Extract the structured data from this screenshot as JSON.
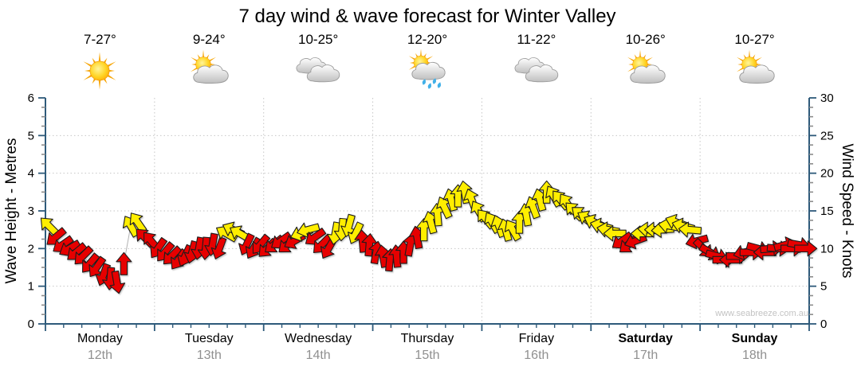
{
  "title": "7 day wind & wave forecast for Winter Valley",
  "watermark": "www.seabreeze.com.au",
  "days": [
    {
      "name": "Monday",
      "date": "12th",
      "temp": "7-27°",
      "icon": "sunny",
      "bold": false
    },
    {
      "name": "Tuesday",
      "date": "13th",
      "temp": "9-24°",
      "icon": "partly-cloudy",
      "bold": false
    },
    {
      "name": "Wednesday",
      "date": "14th",
      "temp": "10-25°",
      "icon": "cloudy",
      "bold": false
    },
    {
      "name": "Thursday",
      "date": "15th",
      "temp": "12-20°",
      "icon": "showers",
      "bold": false
    },
    {
      "name": "Friday",
      "date": "16th",
      "temp": "11-22°",
      "icon": "cloudy",
      "bold": false
    },
    {
      "name": "Saturday",
      "date": "17th",
      "temp": "10-26°",
      "icon": "partly-cloudy",
      "bold": true
    },
    {
      "name": "Sunday",
      "date": "18th",
      "temp": "10-27°",
      "icon": "partly-cloudy",
      "bold": true
    }
  ],
  "colors": {
    "arrow_red": "#e60000",
    "arrow_yellow": "#ffee00",
    "arrow_outline": "#1c1c1c",
    "axis": "#2e5a7a",
    "grid": "#c6c6c6",
    "minor_tick": "#8c8c8c",
    "trace_line": "#b2b2b2",
    "date_text": "#909090",
    "watermark_text": "#c3c3c3"
  },
  "chart_data": {
    "type": "wind-arrows",
    "title": "7 day wind & wave forecast for Winter Valley",
    "left_axis": {
      "label": "Wave Height - Metres",
      "min": 0,
      "max": 6,
      "major_step": 1,
      "minor_step": 0.25
    },
    "right_axis": {
      "label": "Wind Speed - Knots",
      "min": 0,
      "max": 30,
      "major_step": 5,
      "minor_step": 1.25
    },
    "x_axis": {
      "categories": [
        "Monday 12th",
        "Tuesday 13th",
        "Wednesday 14th",
        "Thursday 15th",
        "Friday 16th",
        "Saturday 17th",
        "Sunday 18th"
      ],
      "minor_ticks_per_day": 6,
      "grid_at_day_boundaries": true
    },
    "legend": "none",
    "arrow_color_rule": {
      "yellow_min_knots": 12,
      "red_below_knots": 12
    },
    "dir_convention": "degrees clockwise on screen, 0 = arrow points up",
    "arrows_per_day": 16,
    "days": [
      {
        "day": "Monday",
        "knots": [
          13,
          11.5,
          10.5,
          10,
          9.5,
          9,
          8,
          7.5,
          6.5,
          6,
          5.5,
          8,
          13,
          13.5,
          11.5,
          11
        ],
        "dir_deg": [
          315,
          230,
          235,
          240,
          230,
          225,
          220,
          215,
          200,
          185,
          170,
          0,
          330,
          325,
          315,
          320
        ]
      },
      {
        "day": "Tuesday",
        "knots": [
          10,
          9.5,
          9,
          8.5,
          9,
          9.5,
          10,
          10,
          10.5,
          10,
          12,
          12.5,
          12,
          10.5,
          10,
          10.5
        ],
        "dir_deg": [
          215,
          220,
          225,
          215,
          205,
          195,
          190,
          185,
          190,
          200,
          300,
          295,
          300,
          205,
          210,
          220
        ]
      },
      {
        "day": "Wednesday",
        "knots": [
          10,
          10.5,
          11,
          10.5,
          11,
          12,
          12.5,
          11.5,
          10.5,
          10,
          12,
          12.5,
          13,
          12,
          11,
          10.5
        ],
        "dir_deg": [
          225,
          230,
          235,
          230,
          240,
          250,
          255,
          235,
          225,
          210,
          190,
          185,
          195,
          205,
          355,
          5
        ]
      },
      {
        "day": "Thursday",
        "knots": [
          9.5,
          9,
          8.5,
          9,
          9.5,
          10.5,
          11.5,
          12.5,
          13.5,
          14.5,
          15.5,
          16.5,
          17,
          17.5,
          16.5,
          15
        ],
        "dir_deg": [
          10,
          350,
          5,
          355,
          0,
          10,
          350,
          0,
          345,
          355,
          335,
          345,
          0,
          350,
          340,
          330
        ]
      },
      {
        "day": "Friday",
        "knots": [
          14,
          13.5,
          13,
          12.5,
          12.5,
          13.5,
          14.5,
          15.5,
          16.5,
          17.5,
          17,
          16.5,
          16,
          15,
          14.5,
          14
        ],
        "dir_deg": [
          320,
          330,
          340,
          345,
          330,
          0,
          350,
          340,
          345,
          0,
          330,
          320,
          325,
          315,
          310,
          300
        ]
      },
      {
        "day": "Saturday",
        "knots": [
          13.5,
          13,
          12.5,
          12,
          11,
          10.5,
          11,
          12,
          12.5,
          12.5,
          12.5,
          13,
          13.5,
          13,
          12.5,
          11
        ],
        "dir_deg": [
          295,
          285,
          280,
          270,
          235,
          230,
          250,
          270,
          275,
          270,
          265,
          280,
          290,
          285,
          275,
          255
        ]
      },
      {
        "day": "Sunday",
        "knots": [
          10,
          9.5,
          9,
          8.5,
          8.5,
          9,
          9.5,
          9.5,
          10,
          9.5,
          10,
          10,
          10.5,
          10,
          10.5,
          10
        ],
        "dir_deg": [
          135,
          120,
          105,
          90,
          270,
          90,
          255,
          90,
          105,
          270,
          85,
          95,
          75,
          90,
          100,
          90
        ]
      }
    ]
  }
}
